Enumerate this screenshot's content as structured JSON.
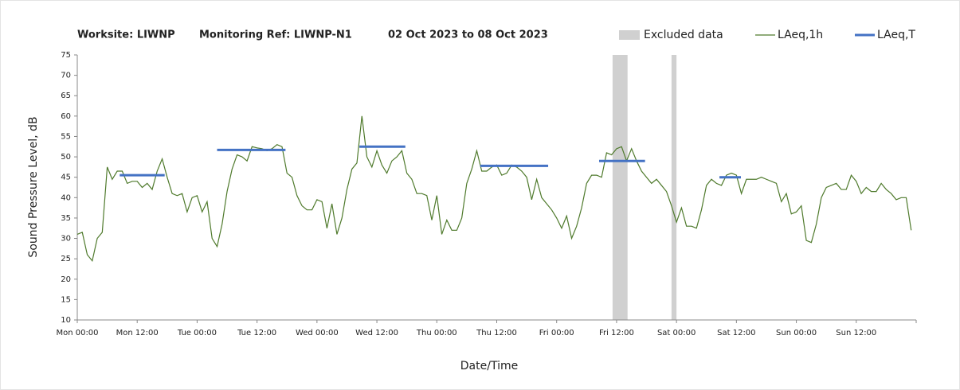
{
  "chart_data": {
    "type": "line",
    "title": [
      "Worksite: LIWNP",
      "Monitoring Ref: LIWNP-N1",
      "02 Oct 2023 to 08 Oct 2023"
    ],
    "x_label": "Date/Time",
    "y_label": "Sound Pressure Level, dB",
    "xlim": [
      0,
      168
    ],
    "ylim": [
      10,
      75
    ],
    "yticks": [
      10,
      15,
      20,
      25,
      30,
      35,
      40,
      45,
      50,
      55,
      60,
      65,
      70,
      75
    ],
    "xticks": [
      {
        "value": 0,
        "label": "Mon 00:00"
      },
      {
        "value": 12,
        "label": "Mon 12:00"
      },
      {
        "value": 24,
        "label": "Tue 00:00"
      },
      {
        "value": 36,
        "label": "Tue 12:00"
      },
      {
        "value": 48,
        "label": "Wed 00:00"
      },
      {
        "value": 60,
        "label": "Wed 12:00"
      },
      {
        "value": 72,
        "label": "Thu 00:00"
      },
      {
        "value": 84,
        "label": "Thu 12:00"
      },
      {
        "value": 96,
        "label": "Fri 00:00"
      },
      {
        "value": 108,
        "label": "Fri 12:00"
      },
      {
        "value": 120,
        "label": "Sat 00:00"
      },
      {
        "value": 132,
        "label": "Sat 12:00"
      },
      {
        "value": 144,
        "label": "Sun 00:00"
      },
      {
        "value": 156,
        "label": "Sun 12:00"
      }
    ],
    "grid": false,
    "legend": "top-right",
    "excluded": {
      "name": "Excluded data",
      "color": "#d0d0d0",
      "ranges": [
        [
          107.2,
          110.2
        ],
        [
          119,
          120
        ]
      ]
    },
    "x": [
      0,
      1,
      2,
      3,
      4,
      5,
      6,
      7,
      8,
      9,
      10,
      11,
      12,
      13,
      14,
      15,
      16,
      17,
      18,
      19,
      20,
      21,
      22,
      23,
      24,
      25,
      26,
      27,
      28,
      29,
      30,
      31,
      32,
      33,
      34,
      35,
      36,
      37,
      38,
      39,
      40,
      41,
      42,
      43,
      44,
      45,
      46,
      47,
      48,
      49,
      50,
      51,
      52,
      53,
      54,
      55,
      56,
      57,
      58,
      59,
      60,
      61,
      62,
      63,
      64,
      65,
      66,
      67,
      68,
      69,
      70,
      71,
      72,
      73,
      74,
      75,
      76,
      77,
      78,
      79,
      80,
      81,
      82,
      83,
      84,
      85,
      86,
      87,
      88,
      89,
      90,
      91,
      92,
      93,
      94,
      95,
      96,
      97,
      98,
      99,
      100,
      101,
      102,
      103,
      104,
      105,
      106,
      107,
      108,
      109,
      110,
      111,
      112,
      113,
      114,
      115,
      116,
      117,
      118,
      119,
      120,
      121,
      122,
      123,
      124,
      125,
      126,
      127,
      128,
      129,
      130,
      131,
      132,
      133,
      134,
      135,
      136,
      137,
      138,
      139,
      140,
      141,
      142,
      143,
      144,
      145,
      146,
      147,
      148,
      149,
      150,
      151,
      152,
      153,
      154,
      155,
      156,
      157,
      158,
      159,
      160,
      161,
      162,
      163,
      164,
      165,
      166,
      167
    ],
    "series": [
      {
        "name": "LAeq,1h",
        "color": "#4f7a2c",
        "values": [
          31,
          31.5,
          26,
          24.5,
          30,
          31.5,
          47.5,
          44.5,
          46.5,
          46.5,
          43.5,
          44,
          44,
          42.5,
          43.5,
          42,
          46.5,
          49.5,
          45,
          41,
          40.5,
          41,
          36.5,
          40,
          40.5,
          36.5,
          39,
          30,
          28,
          33.5,
          41.5,
          47,
          50.5,
          50,
          49,
          52.5,
          52.2,
          52,
          51.5,
          52,
          53,
          52.5,
          46,
          45,
          40.5,
          38,
          37,
          37,
          39.5,
          39,
          32.5,
          38.5,
          31,
          35,
          42,
          47,
          48.5,
          60,
          50,
          47.5,
          51.5,
          48,
          46,
          49,
          50,
          51.5,
          46,
          44.5,
          41,
          41,
          40.5,
          34.5,
          40.5,
          31,
          34.5,
          32,
          32,
          35,
          43.5,
          47,
          51.5,
          46.5,
          46.5,
          47.5,
          48,
          45.5,
          46,
          48,
          47.5,
          46.5,
          45,
          39.5,
          44.5,
          40,
          38.5,
          37,
          35,
          32.5,
          35.5,
          30,
          33,
          37.5,
          43.5,
          45.5,
          45.5,
          45,
          51,
          50.5,
          52,
          52.5,
          49,
          52,
          49,
          46.5,
          45,
          43.5,
          44.5,
          43,
          41.5,
          38,
          34,
          37.5,
          33,
          33,
          32.5,
          37,
          43,
          44.5,
          43.5,
          43,
          45.5,
          46,
          45.5,
          41,
          44.5,
          44.5,
          44.5,
          45,
          44.5,
          44,
          43.5,
          39,
          41,
          36,
          36.5,
          38,
          29.5,
          29,
          33.5,
          40,
          42.5,
          43,
          43.5,
          42,
          42,
          45.5,
          44,
          41,
          42.5,
          41.5,
          41.5,
          43.5,
          42,
          41,
          39.5,
          40,
          40,
          32
        ]
      },
      {
        "name": "LAeq,T",
        "color": "#4472c4",
        "segments": [
          {
            "x": [
              8.5,
              17.5
            ],
            "value": 45.5
          },
          {
            "x": [
              28,
              41.7
            ],
            "value": 51.7
          },
          {
            "x": [
              56.5,
              65.7
            ],
            "value": 52.5
          },
          {
            "x": [
              80.7,
              94.3
            ],
            "value": 47.8
          },
          {
            "x": [
              104.5,
              113.7
            ],
            "value": 49
          },
          {
            "x": [
              128.6,
              132.9
            ],
            "value": 45
          }
        ]
      }
    ]
  }
}
